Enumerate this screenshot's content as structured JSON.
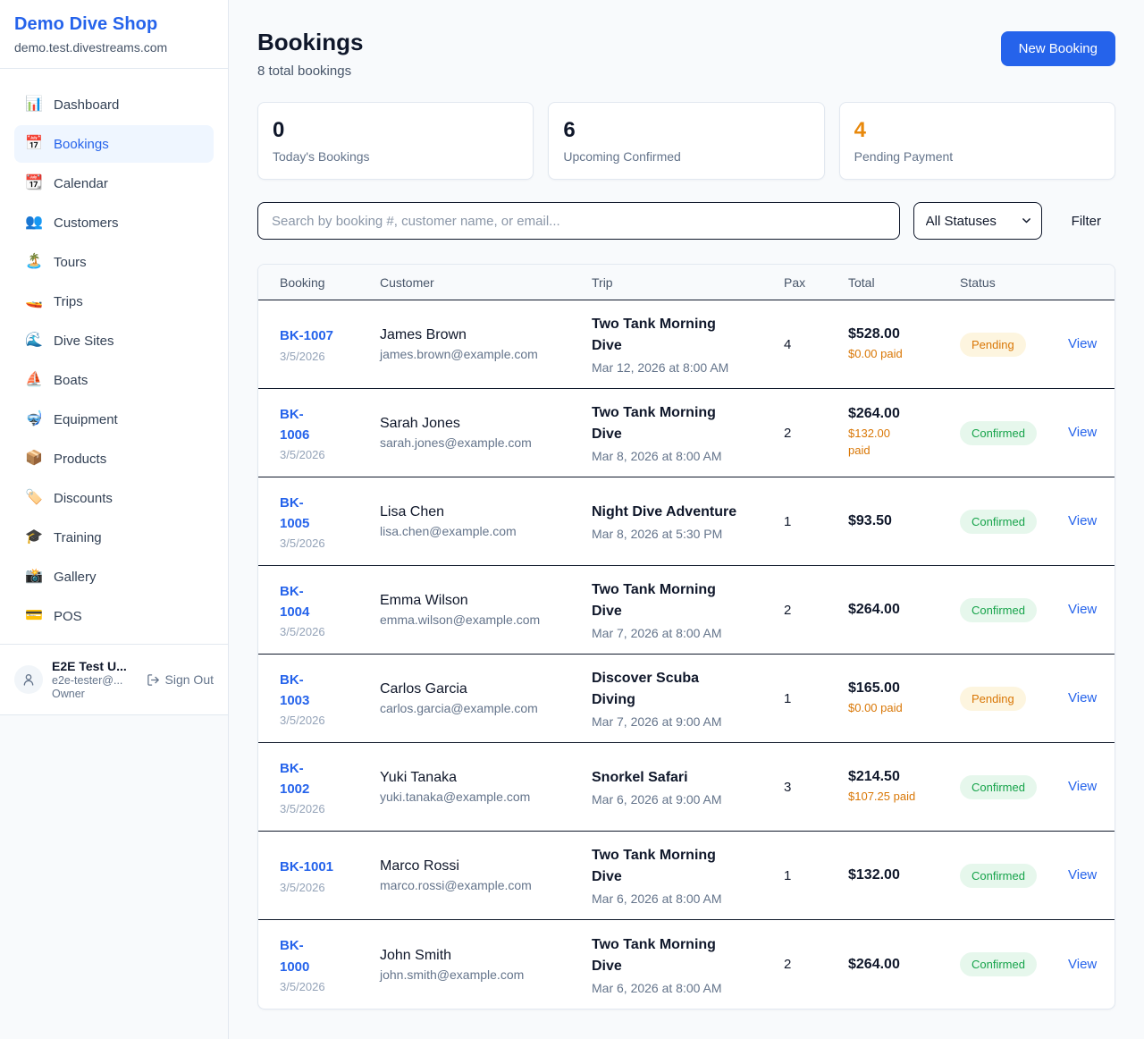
{
  "colors": {
    "brand_blue": "#2563eb",
    "link_blue": "#2563eb",
    "accent_orange": "#e8890c",
    "pending_text": "#d97706",
    "pending_bg": "#fdf5df",
    "confirmed_text": "#16a34a",
    "confirmed_bg": "#e6f7ec"
  },
  "sidebar": {
    "brand": {
      "name": "Demo Dive Shop",
      "domain": "demo.test.divestreams.com"
    },
    "nav": [
      {
        "key": "dashboard",
        "label": "Dashboard",
        "icon": "📊",
        "icon_name": "bar-chart-icon",
        "active": false
      },
      {
        "key": "bookings",
        "label": "Bookings",
        "icon": "📅",
        "icon_name": "calendar-icon",
        "active": true
      },
      {
        "key": "calendar",
        "label": "Calendar",
        "icon": "📆",
        "icon_name": "tear-off-calendar-icon",
        "active": false
      },
      {
        "key": "customers",
        "label": "Customers",
        "icon": "👥",
        "icon_name": "people-icon",
        "active": false
      },
      {
        "key": "tours",
        "label": "Tours",
        "icon": "🏝️",
        "icon_name": "island-icon",
        "active": false
      },
      {
        "key": "trips",
        "label": "Trips",
        "icon": "🚤",
        "icon_name": "speedboat-icon",
        "active": false
      },
      {
        "key": "dive-sites",
        "label": "Dive Sites",
        "icon": "🌊",
        "icon_name": "wave-icon",
        "active": false
      },
      {
        "key": "boats",
        "label": "Boats",
        "icon": "⛵",
        "icon_name": "sailboat-icon",
        "active": false
      },
      {
        "key": "equipment",
        "label": "Equipment",
        "icon": "🤿",
        "icon_name": "diving-mask-icon",
        "active": false
      },
      {
        "key": "products",
        "label": "Products",
        "icon": "📦",
        "icon_name": "package-icon",
        "active": false
      },
      {
        "key": "discounts",
        "label": "Discounts",
        "icon": "🏷️",
        "icon_name": "label-tag-icon",
        "active": false
      },
      {
        "key": "training",
        "label": "Training",
        "icon": "🎓",
        "icon_name": "graduation-cap-icon",
        "active": false
      },
      {
        "key": "gallery",
        "label": "Gallery",
        "icon": "📸",
        "icon_name": "camera-icon",
        "active": false
      },
      {
        "key": "pos",
        "label": "POS",
        "icon": "💳",
        "icon_name": "credit-card-icon",
        "active": false
      }
    ],
    "user": {
      "name": "E2E Test U...",
      "email": "e2e-tester@...",
      "role": "Owner",
      "signout_label": "Sign Out"
    }
  },
  "header": {
    "title": "Bookings",
    "subtitle": "8 total bookings",
    "new_booking_label": "New Booking"
  },
  "stats": [
    {
      "value": "0",
      "label": "Today's Bookings",
      "value_color": "#0f172a"
    },
    {
      "value": "6",
      "label": "Upcoming Confirmed",
      "value_color": "#0f172a"
    },
    {
      "value": "4",
      "label": "Pending Payment",
      "value_color": "#e8890c"
    }
  ],
  "filters": {
    "search_placeholder": "Search by booking #, customer name, or email...",
    "status_selected": "All Statuses",
    "filter_label": "Filter"
  },
  "table": {
    "columns": [
      "Booking",
      "Customer",
      "Trip",
      "Pax",
      "Total",
      "Status",
      ""
    ],
    "view_label": "View",
    "rows": [
      {
        "id": "BK-1007",
        "date": "3/5/2026",
        "customer": "James Brown",
        "email": "james.brown@example.com",
        "trip": "Two Tank Morning\nDive",
        "trip_time": "Mar 12, 2026 at 8:00 AM",
        "pax": "4",
        "total": "$528.00",
        "paid": "$0.00 paid",
        "status": "Pending",
        "status_type": "pending"
      },
      {
        "id": "BK-\n1006",
        "date": "3/5/2026",
        "customer": "Sarah Jones",
        "email": "sarah.jones@example.com",
        "trip": "Two Tank Morning\nDive",
        "trip_time": "Mar 8, 2026 at 8:00 AM",
        "pax": "2",
        "total": "$264.00",
        "paid": "$132.00\npaid",
        "status": "Confirmed",
        "status_type": "confirmed"
      },
      {
        "id": "BK-\n1005",
        "date": "3/5/2026",
        "customer": "Lisa Chen",
        "email": "lisa.chen@example.com",
        "trip": "Night Dive Adventure",
        "trip_time": "Mar 8, 2026 at 5:30 PM",
        "pax": "1",
        "total": "$93.50",
        "paid": null,
        "status": "Confirmed",
        "status_type": "confirmed"
      },
      {
        "id": "BK-\n1004",
        "date": "3/5/2026",
        "customer": "Emma Wilson",
        "email": "emma.wilson@example.com",
        "trip": "Two Tank Morning\nDive",
        "trip_time": "Mar 7, 2026 at 8:00 AM",
        "pax": "2",
        "total": "$264.00",
        "paid": null,
        "status": "Confirmed",
        "status_type": "confirmed"
      },
      {
        "id": "BK-\n1003",
        "date": "3/5/2026",
        "customer": "Carlos Garcia",
        "email": "carlos.garcia@example.com",
        "trip": "Discover Scuba\nDiving",
        "trip_time": "Mar 7, 2026 at 9:00 AM",
        "pax": "1",
        "total": "$165.00",
        "paid": "$0.00 paid",
        "status": "Pending",
        "status_type": "pending"
      },
      {
        "id": "BK-\n1002",
        "date": "3/5/2026",
        "customer": "Yuki Tanaka",
        "email": "yuki.tanaka@example.com",
        "trip": "Snorkel Safari",
        "trip_time": "Mar 6, 2026 at 9:00 AM",
        "pax": "3",
        "total": "$214.50",
        "paid": "$107.25 paid",
        "status": "Confirmed",
        "status_type": "confirmed"
      },
      {
        "id": "BK-1001",
        "date": "3/5/2026",
        "customer": "Marco Rossi",
        "email": "marco.rossi@example.com",
        "trip": "Two Tank Morning\nDive",
        "trip_time": "Mar 6, 2026 at 8:00 AM",
        "pax": "1",
        "total": "$132.00",
        "paid": null,
        "status": "Confirmed",
        "status_type": "confirmed"
      },
      {
        "id": "BK-\n1000",
        "date": "3/5/2026",
        "customer": "John Smith",
        "email": "john.smith@example.com",
        "trip": "Two Tank Morning\nDive",
        "trip_time": "Mar 6, 2026 at 8:00 AM",
        "pax": "2",
        "total": "$264.00",
        "paid": null,
        "status": "Confirmed",
        "status_type": "confirmed"
      }
    ]
  }
}
